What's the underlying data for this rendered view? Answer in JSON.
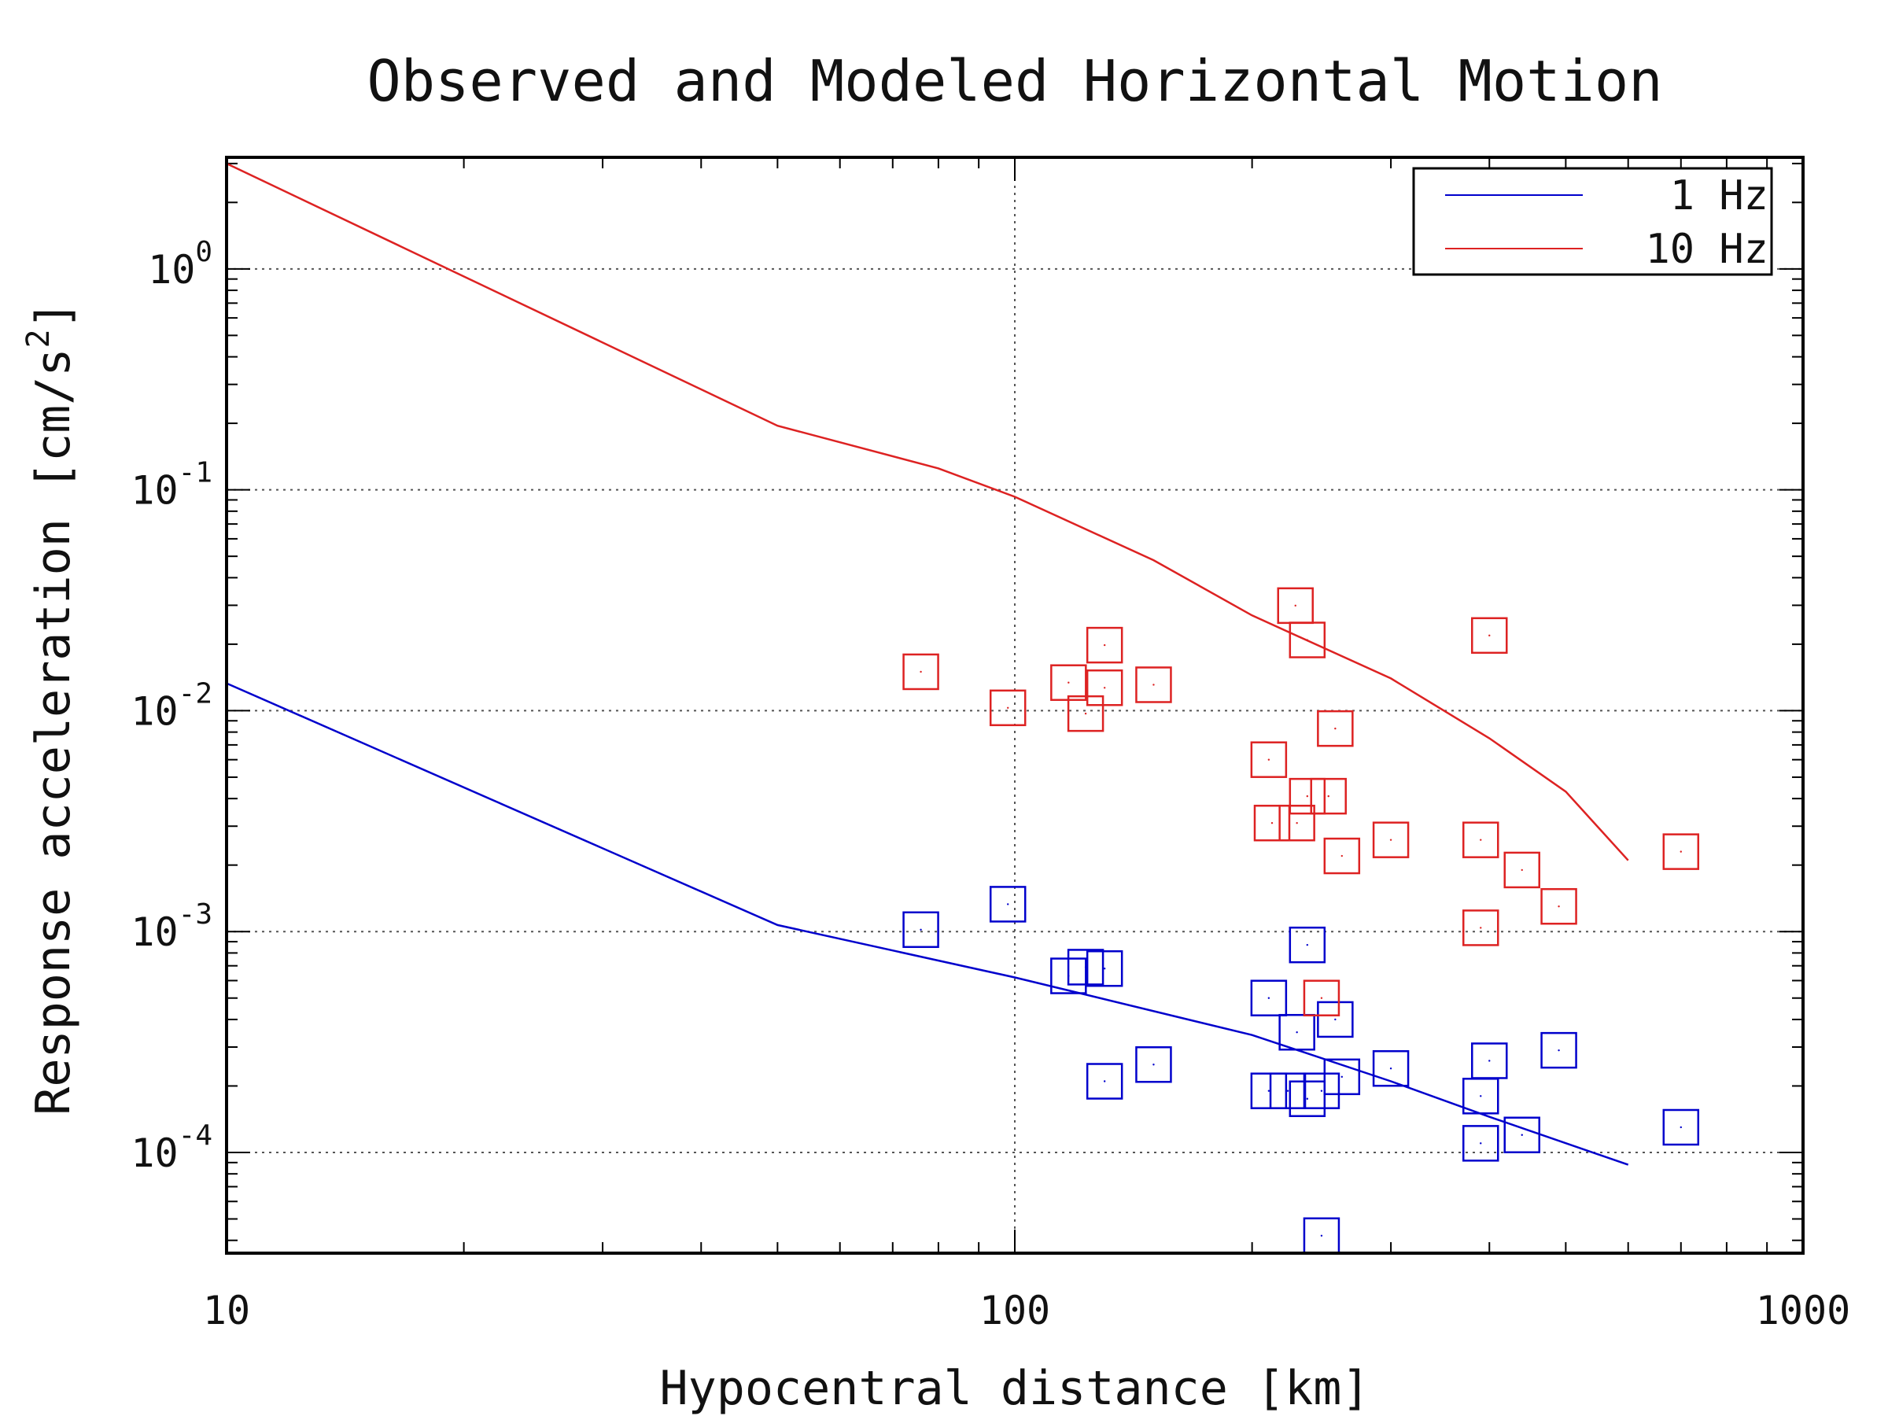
{
  "chart_data": {
    "type": "scatter",
    "title": "Observed and Modeled Horizontal Motion",
    "xlabel": "Hypocentral distance [km]",
    "ylabel_main": "Response acceleration [cm/s",
    "ylabel_sup": "2",
    "ylabel_close": "]",
    "x_scale": "log",
    "y_scale": "log",
    "xlim": [
      10,
      1000
    ],
    "ylim": [
      3.5e-05,
      3.2
    ],
    "x_ticks": [
      {
        "value": 10,
        "label": "10"
      },
      {
        "value": 100,
        "label": "100"
      },
      {
        "value": 1000,
        "label": "1000"
      }
    ],
    "y_ticks": [
      {
        "value": 1,
        "base": "10",
        "exp": "0"
      },
      {
        "value": 0.1,
        "base": "10",
        "exp": "-1"
      },
      {
        "value": 0.01,
        "base": "10",
        "exp": "-2"
      },
      {
        "value": 0.001,
        "base": "10",
        "exp": "-3"
      },
      {
        "value": 0.0001,
        "base": "10",
        "exp": "-4"
      }
    ],
    "grid": true,
    "legend_position": "top-right",
    "series": [
      {
        "name": "1 Hz",
        "color": "#0000cc",
        "line": [
          [
            10,
            0.0133
          ],
          [
            50,
            0.00107
          ],
          [
            100,
            0.00062
          ],
          [
            200,
            0.00034
          ],
          [
            300,
            0.00021
          ],
          [
            400,
            0.000145
          ],
          [
            600,
            8.8e-05
          ]
        ],
        "points": [
          [
            76,
            0.00102
          ],
          [
            98,
            0.00133
          ],
          [
            117,
            0.00063
          ],
          [
            123,
            0.00069
          ],
          [
            130,
            0.00068
          ],
          [
            130,
            0.00021
          ],
          [
            150,
            0.00025
          ],
          [
            210,
            0.0005
          ],
          [
            210,
            0.00019
          ],
          [
            222,
            0.00019
          ],
          [
            228,
            0.00035
          ],
          [
            235,
            0.000175
          ],
          [
            235,
            0.00087
          ],
          [
            245,
            4.2e-05
          ],
          [
            245,
            0.00019
          ],
          [
            255,
            0.0004
          ],
          [
            260,
            0.00022
          ],
          [
            300,
            0.00024
          ],
          [
            390,
            0.00018
          ],
          [
            390,
            0.00011
          ],
          [
            400,
            0.00026
          ],
          [
            440,
            0.00012
          ],
          [
            490,
            0.00029
          ],
          [
            700,
            0.00013
          ]
        ]
      },
      {
        "name": "10 Hz",
        "color": "#dd2222",
        "line": [
          [
            10,
            3.0
          ],
          [
            50,
            0.195
          ],
          [
            80,
            0.125
          ],
          [
            100,
            0.093
          ],
          [
            150,
            0.048
          ],
          [
            200,
            0.027
          ],
          [
            300,
            0.014
          ],
          [
            400,
            0.0075
          ],
          [
            500,
            0.0043
          ],
          [
            600,
            0.0021
          ]
        ],
        "points": [
          [
            76,
            0.015
          ],
          [
            98,
            0.0103
          ],
          [
            117,
            0.0134
          ],
          [
            123,
            0.0097
          ],
          [
            130,
            0.0127
          ],
          [
            130,
            0.0198
          ],
          [
            150,
            0.0131
          ],
          [
            210,
            0.006
          ],
          [
            212,
            0.0031
          ],
          [
            228,
            0.0031
          ],
          [
            227,
            0.0299
          ],
          [
            235,
            0.0041
          ],
          [
            235,
            0.0209
          ],
          [
            245,
            0.0005
          ],
          [
            250,
            0.0041
          ],
          [
            255,
            0.0083
          ],
          [
            260,
            0.0022
          ],
          [
            300,
            0.0026
          ],
          [
            390,
            0.0026
          ],
          [
            390,
            0.00104
          ],
          [
            400,
            0.0219
          ],
          [
            440,
            0.0019
          ],
          [
            490,
            0.0013
          ],
          [
            700,
            0.0023
          ]
        ]
      }
    ]
  }
}
